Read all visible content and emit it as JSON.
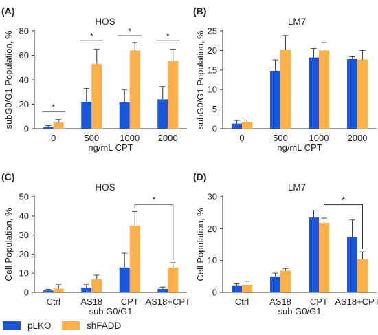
{
  "colors": {
    "pLKO": "#1c56d8",
    "shFADD": "#fbb04c"
  },
  "legend": [
    {
      "name": "pLKO",
      "color": "#1c56d8"
    },
    {
      "name": "shFADD",
      "color": "#fbb04c"
    }
  ],
  "chart_data": [
    {
      "letter": "(A)",
      "type": "bar",
      "title": "HOS",
      "xlabel": "ng/mL CPT",
      "ylabel": "subG0/G1 Population, %",
      "ylim": [
        0,
        80
      ],
      "yticks": [
        0,
        20,
        40,
        60,
        80
      ],
      "categories": [
        "0",
        "500",
        "1000",
        "2000"
      ],
      "series": [
        {
          "name": "pLKO",
          "values": [
            1.5,
            22,
            21.5,
            24
          ],
          "errors": [
            1.0,
            11,
            10.5,
            10.5
          ]
        },
        {
          "name": "shFADD",
          "values": [
            5,
            53,
            64,
            55.5
          ],
          "errors": [
            2.5,
            12,
            6.5,
            9.5
          ]
        }
      ],
      "significance": [
        {
          "type": "line",
          "category": 0,
          "y": 14,
          "label": "*"
        },
        {
          "type": "line",
          "category": 1,
          "y": 72,
          "label": "*"
        },
        {
          "type": "line",
          "category": 2,
          "y": 76,
          "label": "*"
        },
        {
          "type": "line",
          "category": 3,
          "y": 72,
          "label": "*"
        }
      ]
    },
    {
      "letter": "(B)",
      "type": "bar",
      "title": "LM7",
      "xlabel": "ng/mL CPT",
      "ylabel": "subG0/G1 Population, %",
      "ylim": [
        0,
        25
      ],
      "yticks": [
        0,
        5,
        10,
        15,
        20,
        25
      ],
      "categories": [
        "0",
        "500",
        "1000",
        "2000"
      ],
      "series": [
        {
          "name": "pLKO",
          "values": [
            1.3,
            14.8,
            18.2,
            17.8
          ],
          "errors": [
            0.8,
            2.8,
            2.3,
            0.6
          ]
        },
        {
          "name": "shFADD",
          "values": [
            1.7,
            20.3,
            20.0,
            17.7
          ],
          "errors": [
            0.5,
            3.5,
            2.0,
            2.3
          ]
        }
      ],
      "significance": []
    },
    {
      "letter": "(C)",
      "type": "bar",
      "title": "HOS",
      "xlabel": "sub G0/G1",
      "ylabel": "Cell Population, %",
      "ylim": [
        0,
        50
      ],
      "yticks": [
        0,
        10,
        20,
        30,
        40,
        50
      ],
      "categories": [
        "Ctrl",
        "AS18",
        "CPT",
        "AS18+CPT"
      ],
      "series": [
        {
          "name": "pLKO",
          "values": [
            1.0,
            2.5,
            13.0,
            1.8
          ],
          "errors": [
            0.6,
            1.5,
            7.5,
            1.0
          ]
        },
        {
          "name": "shFADD",
          "values": [
            2.0,
            7.0,
            35.0,
            13.0
          ],
          "errors": [
            2.0,
            2.0,
            7.3,
            2.5
          ]
        }
      ],
      "significance": [
        {
          "type": "bracket",
          "from": [
            2,
            1
          ],
          "to": [
            3,
            1
          ],
          "y": 46,
          "label": "*"
        }
      ]
    },
    {
      "letter": "(D)",
      "type": "bar",
      "title": "LM7",
      "xlabel": "sub G0/G1",
      "ylabel": "Cell Population, %",
      "ylim": [
        0,
        30
      ],
      "yticks": [
        0,
        10,
        20,
        30
      ],
      "categories": [
        "Ctrl",
        "AS18",
        "CPT",
        "AS18+CPT"
      ],
      "series": [
        {
          "name": "pLKO",
          "values": [
            2.0,
            5.0,
            23.5,
            17.5
          ],
          "errors": [
            0.7,
            1.0,
            2.3,
            5.2
          ]
        },
        {
          "name": "shFADD",
          "values": [
            2.3,
            6.8,
            21.8,
            10.5
          ],
          "errors": [
            1.2,
            0.7,
            1.5,
            2.2
          ]
        }
      ],
      "significance": [
        {
          "type": "bracket",
          "from": [
            2,
            1
          ],
          "to": [
            3,
            1
          ],
          "y": 27.5,
          "label": "*"
        }
      ]
    }
  ]
}
